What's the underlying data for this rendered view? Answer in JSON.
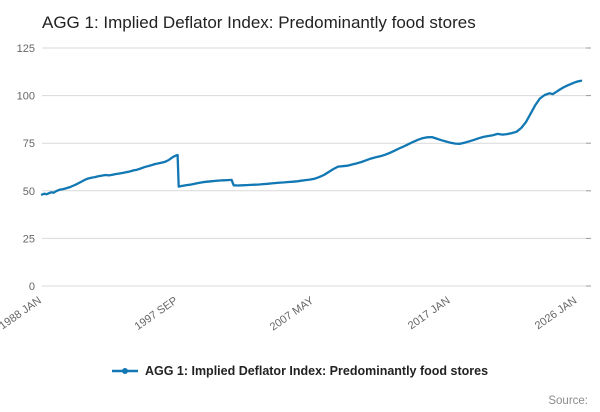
{
  "title": "AGG 1: Implied Deflator Index: Predominantly food stores",
  "legend": {
    "label": "AGG 1: Implied Deflator Index: Predominantly food stores"
  },
  "source_label": "Source:",
  "colors": {
    "line": "#1178b4",
    "grid": "#d9d9d9",
    "tick": "#999999",
    "axis_text": "#666666",
    "title_text": "#222222"
  },
  "chart_data": {
    "type": "line",
    "title": "AGG 1: Implied Deflator Index: Predominantly food stores",
    "xlabel": "",
    "ylabel": "",
    "ylim": [
      0,
      125
    ],
    "yticks": [
      0,
      25,
      50,
      75,
      100,
      125
    ],
    "x_range": [
      1988.0,
      2026.6
    ],
    "grid": "horizontal",
    "legend_position": "bottom",
    "xticks": [
      {
        "x": 1988.0,
        "label": "1988 JAN"
      },
      {
        "x": 1997.67,
        "label": "1997 SEP"
      },
      {
        "x": 2007.33,
        "label": "2007 MAY"
      },
      {
        "x": 2017.0,
        "label": "2017 JAN"
      },
      {
        "x": 2026.0,
        "label": "2026 JAN"
      }
    ],
    "series": [
      {
        "name": "AGG 1: Implied Deflator Index: Predominantly food stores",
        "color": "#1178b4",
        "points": [
          [
            1988.0,
            48.0
          ],
          [
            1988.17,
            48.5
          ],
          [
            1988.33,
            48.2
          ],
          [
            1988.5,
            48.8
          ],
          [
            1988.67,
            49.2
          ],
          [
            1988.83,
            49.0
          ],
          [
            1989.0,
            49.8
          ],
          [
            1989.25,
            50.6
          ],
          [
            1989.5,
            50.9
          ],
          [
            1989.75,
            51.4
          ],
          [
            1990.0,
            52.0
          ],
          [
            1990.25,
            52.8
          ],
          [
            1990.5,
            53.6
          ],
          [
            1990.75,
            54.6
          ],
          [
            1991.0,
            55.6
          ],
          [
            1991.25,
            56.4
          ],
          [
            1991.5,
            56.9
          ],
          [
            1991.75,
            57.2
          ],
          [
            1992.0,
            57.6
          ],
          [
            1992.25,
            58.0
          ],
          [
            1992.5,
            58.3
          ],
          [
            1992.75,
            58.1
          ],
          [
            1993.0,
            58.4
          ],
          [
            1993.25,
            58.8
          ],
          [
            1993.5,
            59.1
          ],
          [
            1993.75,
            59.4
          ],
          [
            1994.0,
            59.8
          ],
          [
            1994.25,
            60.2
          ],
          [
            1994.5,
            60.7
          ],
          [
            1994.75,
            61.1
          ],
          [
            1995.0,
            61.7
          ],
          [
            1995.25,
            62.4
          ],
          [
            1995.5,
            62.9
          ],
          [
            1995.75,
            63.4
          ],
          [
            1996.0,
            64.0
          ],
          [
            1996.25,
            64.4
          ],
          [
            1996.5,
            64.8
          ],
          [
            1996.75,
            65.3
          ],
          [
            1997.0,
            66.2
          ],
          [
            1997.17,
            67.1
          ],
          [
            1997.33,
            67.9
          ],
          [
            1997.5,
            68.5
          ],
          [
            1997.62,
            68.8
          ],
          [
            1997.7,
            52.2
          ],
          [
            1997.9,
            52.5
          ],
          [
            1998.2,
            52.9
          ],
          [
            1998.5,
            53.2
          ],
          [
            1998.8,
            53.6
          ],
          [
            1999.1,
            54.1
          ],
          [
            1999.4,
            54.5
          ],
          [
            1999.7,
            54.8
          ],
          [
            2000.0,
            55.0
          ],
          [
            2000.3,
            55.2
          ],
          [
            2000.6,
            55.4
          ],
          [
            2000.9,
            55.5
          ],
          [
            2001.2,
            55.6
          ],
          [
            2001.45,
            55.7
          ],
          [
            2001.6,
            52.9
          ],
          [
            2001.9,
            52.8
          ],
          [
            2002.2,
            52.9
          ],
          [
            2002.5,
            53.0
          ],
          [
            2002.8,
            53.1
          ],
          [
            2003.1,
            53.2
          ],
          [
            2003.4,
            53.3
          ],
          [
            2003.7,
            53.5
          ],
          [
            2004.0,
            53.7
          ],
          [
            2004.3,
            53.9
          ],
          [
            2004.6,
            54.1
          ],
          [
            2004.9,
            54.3
          ],
          [
            2005.2,
            54.4
          ],
          [
            2005.5,
            54.6
          ],
          [
            2005.8,
            54.8
          ],
          [
            2006.1,
            55.0
          ],
          [
            2006.4,
            55.3
          ],
          [
            2006.7,
            55.6
          ],
          [
            2007.0,
            55.9
          ],
          [
            2007.33,
            56.3
          ],
          [
            2007.67,
            57.2
          ],
          [
            2008.0,
            58.3
          ],
          [
            2008.33,
            59.8
          ],
          [
            2008.67,
            61.4
          ],
          [
            2009.0,
            62.7
          ],
          [
            2009.33,
            62.9
          ],
          [
            2009.67,
            63.2
          ],
          [
            2010.0,
            63.8
          ],
          [
            2010.33,
            64.4
          ],
          [
            2010.67,
            65.1
          ],
          [
            2011.0,
            66.0
          ],
          [
            2011.33,
            66.9
          ],
          [
            2011.67,
            67.6
          ],
          [
            2012.0,
            68.1
          ],
          [
            2012.33,
            68.9
          ],
          [
            2012.67,
            69.9
          ],
          [
            2013.0,
            71.0
          ],
          [
            2013.33,
            72.2
          ],
          [
            2013.67,
            73.3
          ],
          [
            2014.0,
            74.5
          ],
          [
            2014.33,
            75.7
          ],
          [
            2014.67,
            76.8
          ],
          [
            2015.0,
            77.6
          ],
          [
            2015.33,
            78.1
          ],
          [
            2015.67,
            78.2
          ],
          [
            2016.0,
            77.4
          ],
          [
            2016.33,
            76.6
          ],
          [
            2016.67,
            75.9
          ],
          [
            2017.0,
            75.2
          ],
          [
            2017.33,
            74.8
          ],
          [
            2017.67,
            74.7
          ],
          [
            2018.0,
            75.3
          ],
          [
            2018.33,
            76.0
          ],
          [
            2018.67,
            76.8
          ],
          [
            2019.0,
            77.6
          ],
          [
            2019.33,
            78.3
          ],
          [
            2019.67,
            78.8
          ],
          [
            2020.0,
            79.2
          ],
          [
            2020.33,
            79.9
          ],
          [
            2020.67,
            79.5
          ],
          [
            2021.0,
            79.8
          ],
          [
            2021.33,
            80.3
          ],
          [
            2021.67,
            81.0
          ],
          [
            2022.0,
            83.0
          ],
          [
            2022.33,
            86.0
          ],
          [
            2022.67,
            90.5
          ],
          [
            2023.0,
            95.0
          ],
          [
            2023.33,
            98.5
          ],
          [
            2023.67,
            100.3
          ],
          [
            2024.0,
            101.2
          ],
          [
            2024.25,
            100.8
          ],
          [
            2024.5,
            102.0
          ],
          [
            2024.75,
            103.2
          ],
          [
            2025.0,
            104.3
          ],
          [
            2025.25,
            105.2
          ],
          [
            2025.5,
            106.0
          ],
          [
            2025.75,
            106.8
          ],
          [
            2026.0,
            107.4
          ],
          [
            2026.25,
            107.8
          ]
        ]
      }
    ]
  }
}
